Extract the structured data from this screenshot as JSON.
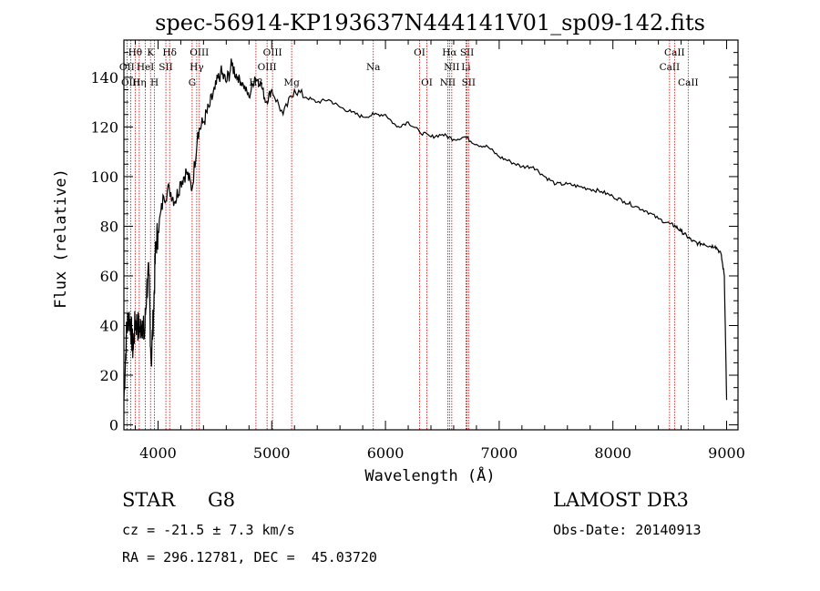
{
  "chart_data": {
    "type": "line",
    "title": "spec-56914-KP193637N444141V01_sp09-142.fits",
    "xlabel": "Wavelength (Å)",
    "ylabel": "Flux (relative)",
    "xlim": [
      3700,
      9100
    ],
    "ylim": [
      -2,
      155
    ],
    "xticks": [
      4000,
      5000,
      6000,
      7000,
      8000,
      9000
    ],
    "yticks": [
      0,
      20,
      40,
      60,
      80,
      100,
      120,
      140
    ],
    "grid": false,
    "line_color": "#000000",
    "marker_color": "#cc0000",
    "series": [
      {
        "name": "flux",
        "x": [
          3700,
          3720,
          3740,
          3760,
          3780,
          3800,
          3820,
          3840,
          3860,
          3880,
          3900,
          3920,
          3940,
          3960,
          3980,
          4000,
          4050,
          4100,
          4150,
          4200,
          4250,
          4300,
          4350,
          4400,
          4450,
          4500,
          4550,
          4600,
          4650,
          4700,
          4750,
          4800,
          4850,
          4900,
          4950,
          5000,
          5100,
          5200,
          5300,
          5400,
          5500,
          5600,
          5700,
          5800,
          5900,
          6000,
          6100,
          6200,
          6300,
          6400,
          6500,
          6600,
          6700,
          6800,
          6900,
          7000,
          7100,
          7200,
          7300,
          7400,
          7500,
          7600,
          7700,
          7800,
          7900,
          8000,
          8100,
          8200,
          8300,
          8400,
          8500,
          8550,
          8600,
          8650,
          8700,
          8750,
          8800,
          8850,
          8900,
          8950,
          8980,
          9000
        ],
        "y": [
          10,
          35,
          45,
          40,
          30,
          42,
          40,
          38,
          42,
          35,
          55,
          60,
          25,
          45,
          72,
          78,
          92,
          95,
          90,
          98,
          102,
          95,
          118,
          122,
          128,
          135,
          142,
          138,
          145,
          140,
          137,
          132,
          140,
          138,
          130,
          135,
          125,
          135,
          132,
          130,
          131,
          128,
          126,
          124,
          125,
          125,
          120,
          122,
          118,
          116,
          117,
          115,
          116,
          113,
          112,
          108,
          106,
          104,
          104,
          100,
          97,
          97,
          96,
          95,
          94,
          92,
          90,
          88,
          86,
          83,
          81,
          80,
          78,
          76,
          74,
          73,
          73,
          72,
          72,
          69,
          60,
          10
        ]
      }
    ],
    "lines_row1": [
      {
        "label": "Hθ",
        "x": 3799
      },
      {
        "label": "K",
        "x": 3934
      },
      {
        "label": "Hδ",
        "x": 4102
      },
      {
        "label": "OIII",
        "x": 4363
      },
      {
        "label": "OIII",
        "x": 5007
      },
      {
        "label": "OI",
        "x": 6300
      },
      {
        "label": "Hα",
        "x": 6563
      },
      {
        "label": "SII",
        "x": 6717
      },
      {
        "label": "CaII",
        "x": 8542
      }
    ],
    "lines_row2": [
      {
        "label": "OII",
        "x": 3727
      },
      {
        "label": "HeI",
        "x": 3889
      },
      {
        "label": "SII",
        "x": 4069
      },
      {
        "label": "Hγ",
        "x": 4340
      },
      {
        "label": "OIII",
        "x": 4959
      },
      {
        "label": "Na",
        "x": 5893
      },
      {
        "label": "NII",
        "x": 6583
      },
      {
        "label": "Li",
        "x": 6708
      },
      {
        "label": "CaII",
        "x": 8498
      }
    ],
    "lines_row3": [
      {
        "label": "OIII",
        "x": 3760
      },
      {
        "label": "Hη",
        "x": 3835
      },
      {
        "label": "H",
        "x": 3969
      },
      {
        "label": "G",
        "x": 4300
      },
      {
        "label": "Hβ",
        "x": 4861
      },
      {
        "label": "Mg",
        "x": 5175
      },
      {
        "label": "OI",
        "x": 6364
      },
      {
        "label": "NII",
        "x": 6548
      },
      {
        "label": "SII",
        "x": 6731
      },
      {
        "label": "CaII",
        "x": 8662
      }
    ]
  },
  "info": {
    "obj_class": "STAR",
    "subclass": "G8",
    "survey": "LAMOST DR3",
    "cz": "cz = -21.5 ± 7.3 km/s",
    "obs_date": "Obs-Date: 20140913",
    "coords": "RA = 296.12781, DEC =  45.03720"
  }
}
